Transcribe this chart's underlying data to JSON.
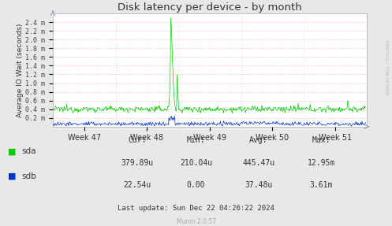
{
  "title": "Disk latency per device - by month",
  "ylabel": "Average IO Wait (seconds)",
  "bg_color": "#e8e8e8",
  "plot_bg_color": "#ffffff",
  "grid_color_h": "#ffaaaa",
  "grid_color_v": "#ccccff",
  "sda_color": "#00cc00",
  "sdb_color": "#0033cc",
  "week_labels": [
    "Week 47",
    "Week 48",
    "Week 49",
    "Week 50",
    "Week 51"
  ],
  "ylim_max": 0.0026,
  "ytick_vals": [
    0.0002,
    0.0004,
    0.0006,
    0.0008,
    0.001,
    0.0012,
    0.0014,
    0.0016,
    0.0018,
    0.002,
    0.0022,
    0.0024
  ],
  "ytick_labels": [
    "0.2 m",
    "0.4 m",
    "0.6 m",
    "0.8 m",
    "1.0 m",
    "1.2 m",
    "1.4 m",
    "1.6 m",
    "1.8 m",
    "2.0 m",
    "2.2 m",
    "2.4 m"
  ],
  "footer_cur_label": "Cur:",
  "footer_min_label": "Min:",
  "footer_avg_label": "Avg:",
  "footer_max_label": "Max:",
  "footer_cur": [
    "379.89u",
    "22.54u"
  ],
  "footer_min": [
    "210.04u",
    "0.00"
  ],
  "footer_avg": [
    "445.47u",
    "37.48u"
  ],
  "footer_max": [
    "12.95m",
    "3.61m"
  ],
  "last_update": "Last update: Sun Dec 22 04:26:22 2024",
  "munin_version": "Munin 2.0.57",
  "rrdtool_label": "RRDTOOL / TOBI OETIKER"
}
